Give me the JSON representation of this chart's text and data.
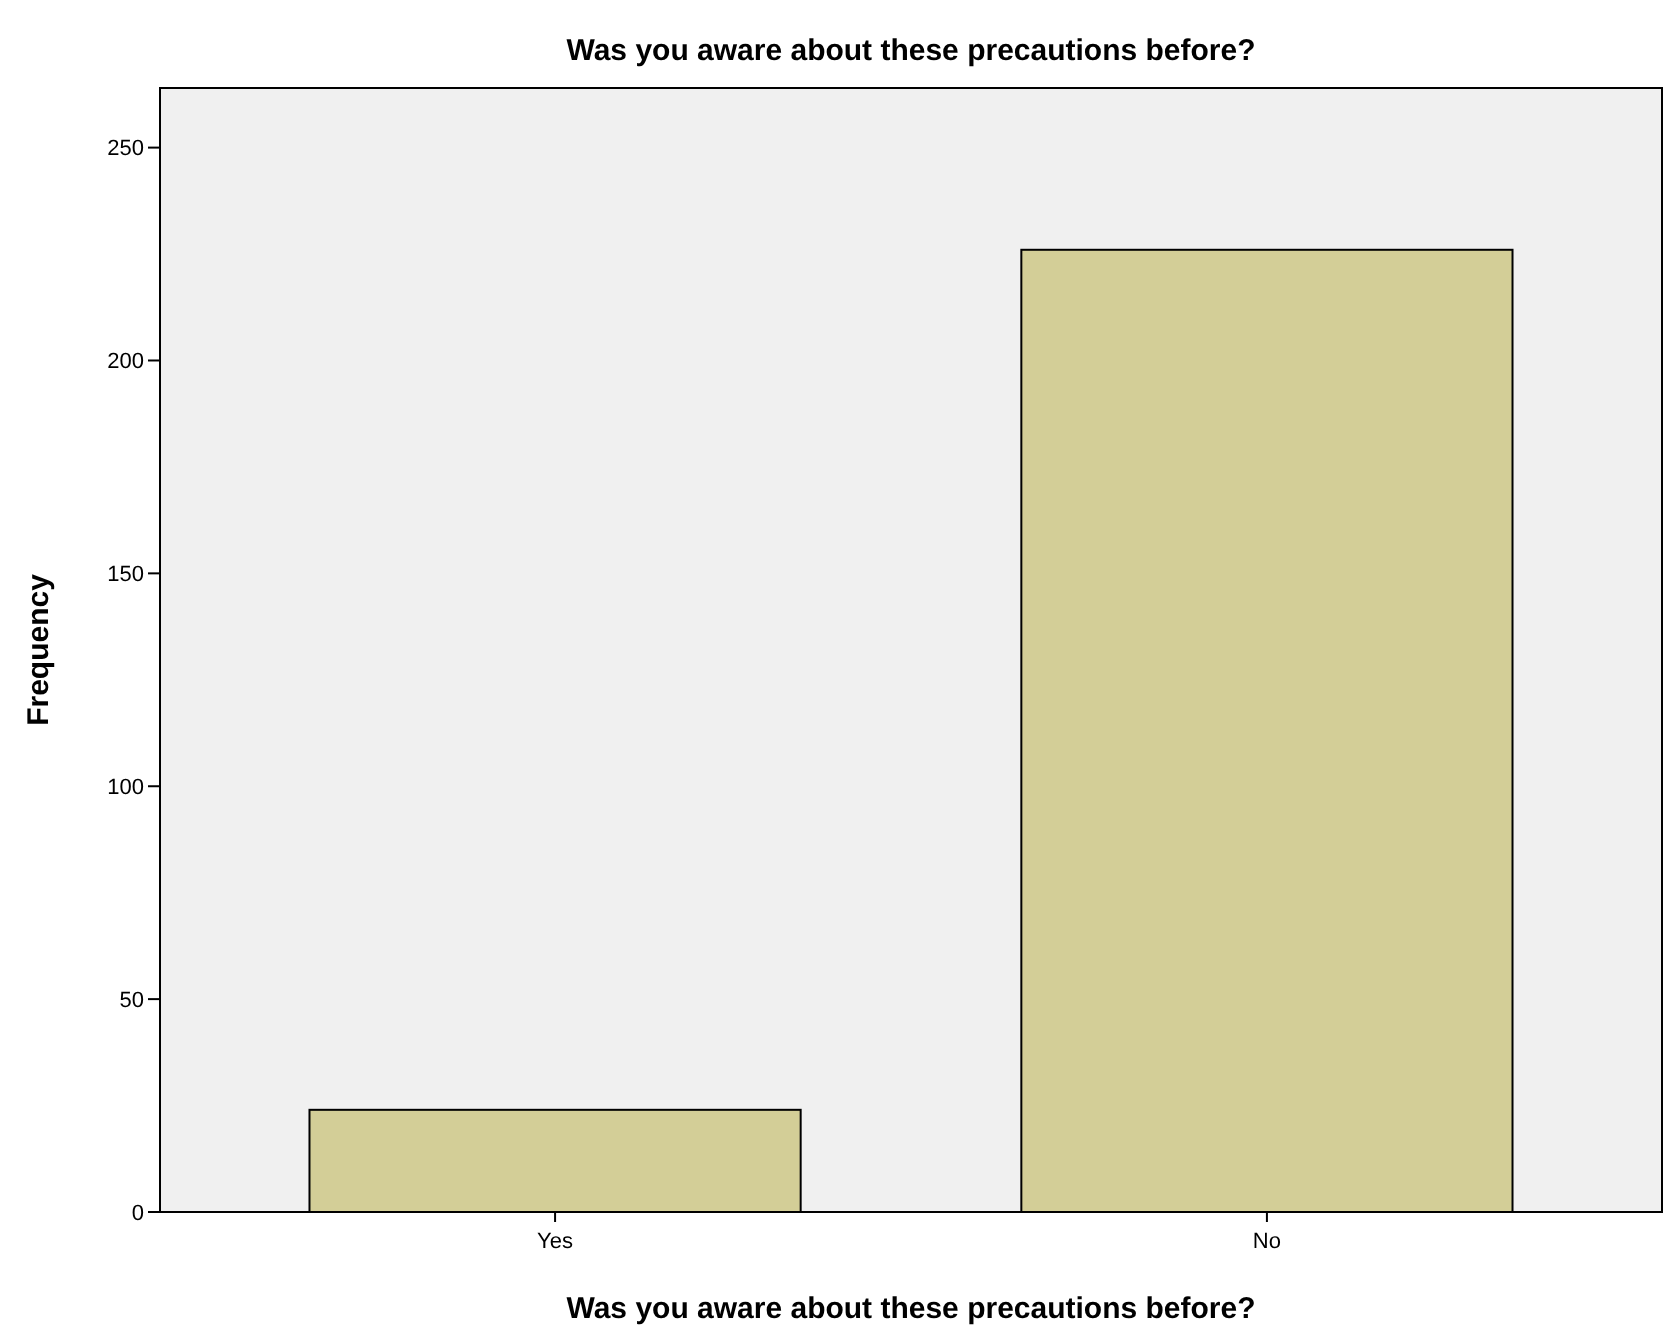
{
  "chart_data": {
    "type": "bar",
    "title": "Was you aware about these precautions before?",
    "xlabel": "Was you aware about these precautions before?",
    "ylabel": "Frequency",
    "categories": [
      "Yes",
      "No"
    ],
    "values": [
      24,
      226
    ],
    "color": "#d3ce97",
    "ylim": [
      0,
      264
    ],
    "yticks": [
      0,
      50,
      100,
      150,
      200,
      250
    ],
    "grid": false
  }
}
